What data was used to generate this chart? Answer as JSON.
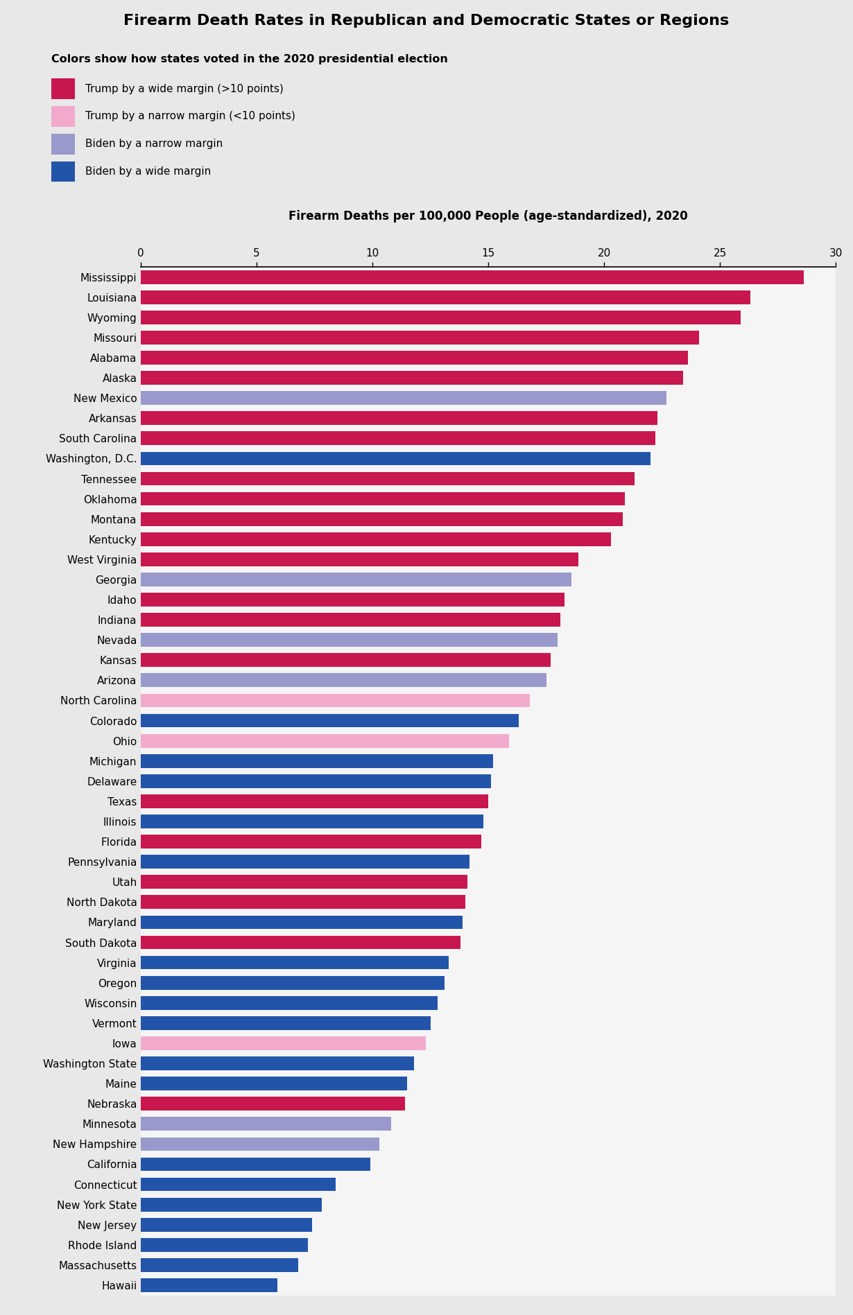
{
  "title": "Firearm Death Rates in Republican and Democratic States or Regions",
  "legend_title": "Colors show how states voted in the 2020 presidential election",
  "legend_items": [
    {
      "label": "Trump by a wide margin (>10 points)",
      "color": "#C8174E"
    },
    {
      "label": "Trump by a narrow margin (<10 points)",
      "color": "#F2AACC"
    },
    {
      "label": "Biden by a narrow margin",
      "color": "#9999CC"
    },
    {
      "label": "Biden by a wide margin",
      "color": "#2255AA"
    }
  ],
  "xlabel": "Firearm Deaths per 100,000 People (age-standardized), 2020",
  "xlim": [
    0,
    30
  ],
  "xticks": [
    0,
    5,
    10,
    15,
    20,
    25,
    30
  ],
  "states": [
    {
      "name": "Mississippi",
      "value": 28.6,
      "color": "#C8174E"
    },
    {
      "name": "Louisiana",
      "value": 26.3,
      "color": "#C8174E"
    },
    {
      "name": "Wyoming",
      "value": 25.9,
      "color": "#C8174E"
    },
    {
      "name": "Missouri",
      "value": 24.1,
      "color": "#C8174E"
    },
    {
      "name": "Alabama",
      "value": 23.6,
      "color": "#C8174E"
    },
    {
      "name": "Alaska",
      "value": 23.4,
      "color": "#C8174E"
    },
    {
      "name": "New Mexico",
      "value": 22.7,
      "color": "#9999CC"
    },
    {
      "name": "Arkansas",
      "value": 22.3,
      "color": "#C8174E"
    },
    {
      "name": "South Carolina",
      "value": 22.2,
      "color": "#C8174E"
    },
    {
      "name": "Washington, D.C.",
      "value": 22.0,
      "color": "#2255AA"
    },
    {
      "name": "Tennessee",
      "value": 21.3,
      "color": "#C8174E"
    },
    {
      "name": "Oklahoma",
      "value": 20.9,
      "color": "#C8174E"
    },
    {
      "name": "Montana",
      "value": 20.8,
      "color": "#C8174E"
    },
    {
      "name": "Kentucky",
      "value": 20.3,
      "color": "#C8174E"
    },
    {
      "name": "West Virginia",
      "value": 18.9,
      "color": "#C8174E"
    },
    {
      "name": "Georgia",
      "value": 18.6,
      "color": "#9999CC"
    },
    {
      "name": "Idaho",
      "value": 18.3,
      "color": "#C8174E"
    },
    {
      "name": "Indiana",
      "value": 18.1,
      "color": "#C8174E"
    },
    {
      "name": "Nevada",
      "value": 18.0,
      "color": "#9999CC"
    },
    {
      "name": "Kansas",
      "value": 17.7,
      "color": "#C8174E"
    },
    {
      "name": "Arizona",
      "value": 17.5,
      "color": "#9999CC"
    },
    {
      "name": "North Carolina",
      "value": 16.8,
      "color": "#F2AACC"
    },
    {
      "name": "Colorado",
      "value": 16.3,
      "color": "#2255AA"
    },
    {
      "name": "Ohio",
      "value": 15.9,
      "color": "#F2AACC"
    },
    {
      "name": "Michigan",
      "value": 15.2,
      "color": "#2255AA"
    },
    {
      "name": "Delaware",
      "value": 15.1,
      "color": "#2255AA"
    },
    {
      "name": "Texas",
      "value": 15.0,
      "color": "#C8174E"
    },
    {
      "name": "Illinois",
      "value": 14.8,
      "color": "#2255AA"
    },
    {
      "name": "Florida",
      "value": 14.7,
      "color": "#C8174E"
    },
    {
      "name": "Pennsylvania",
      "value": 14.2,
      "color": "#2255AA"
    },
    {
      "name": "Utah",
      "value": 14.1,
      "color": "#C8174E"
    },
    {
      "name": "North Dakota",
      "value": 14.0,
      "color": "#C8174E"
    },
    {
      "name": "Maryland",
      "value": 13.9,
      "color": "#2255AA"
    },
    {
      "name": "South Dakota",
      "value": 13.8,
      "color": "#C8174E"
    },
    {
      "name": "Virginia",
      "value": 13.3,
      "color": "#2255AA"
    },
    {
      "name": "Oregon",
      "value": 13.1,
      "color": "#2255AA"
    },
    {
      "name": "Wisconsin",
      "value": 12.8,
      "color": "#2255AA"
    },
    {
      "name": "Vermont",
      "value": 12.5,
      "color": "#2255AA"
    },
    {
      "name": "Iowa",
      "value": 12.3,
      "color": "#F2AACC"
    },
    {
      "name": "Washington State",
      "value": 11.8,
      "color": "#2255AA"
    },
    {
      "name": "Maine",
      "value": 11.5,
      "color": "#2255AA"
    },
    {
      "name": "Nebraska",
      "value": 11.4,
      "color": "#C8174E"
    },
    {
      "name": "Minnesota",
      "value": 10.8,
      "color": "#9999CC"
    },
    {
      "name": "New Hampshire",
      "value": 10.3,
      "color": "#9999CC"
    },
    {
      "name": "California",
      "value": 9.9,
      "color": "#2255AA"
    },
    {
      "name": "Connecticut",
      "value": 8.4,
      "color": "#2255AA"
    },
    {
      "name": "New York State",
      "value": 7.8,
      "color": "#2255AA"
    },
    {
      "name": "New Jersey",
      "value": 7.4,
      "color": "#2255AA"
    },
    {
      "name": "Rhode Island",
      "value": 7.2,
      "color": "#2255AA"
    },
    {
      "name": "Massachusetts",
      "value": 6.8,
      "color": "#2255AA"
    },
    {
      "name": "Hawaii",
      "value": 5.9,
      "color": "#2255AA"
    }
  ],
  "bg_color": "#E8E8E8",
  "plot_bg_color": "#F5F5F5",
  "title_fontsize": 16,
  "label_fontsize": 11,
  "tick_fontsize": 11,
  "bar_height": 0.68
}
